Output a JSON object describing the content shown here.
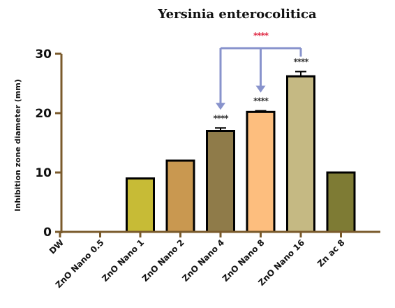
{
  "chart_data": {
    "type": "bar",
    "title": "Yersinia enterocolitica",
    "ylabel": "Inhibition zone diameter (mm)",
    "xlabel": "",
    "ylim": [
      0,
      30
    ],
    "yticks": [
      0,
      10,
      20,
      30
    ],
    "ytick_labels": [
      "0",
      "10",
      "20",
      "30"
    ],
    "grid": false,
    "categories": [
      "DW",
      "ZnO Nano 0.5",
      "ZnO Nano 1",
      "ZnO Nano 2",
      "ZnO Nano 4",
      "ZnO Nano 8",
      "ZnO Nano 16",
      "Zn ac 8"
    ],
    "values": [
      0,
      0,
      9,
      12,
      17,
      20.2,
      26.2,
      10
    ],
    "errors": [
      0,
      0,
      0,
      0,
      0.5,
      0.2,
      0.8,
      0
    ],
    "bar_colors": [
      "#ffffff",
      "#ffffff",
      "#c7bb36",
      "#c99850",
      "#8f7b49",
      "#fdbe7e",
      "#c5b983",
      "#7e7b34"
    ],
    "significance": [
      "",
      "",
      "",
      "",
      "****",
      "****",
      "****",
      ""
    ],
    "comparison": {
      "label": "****",
      "from_category": "ZnO Nano 16",
      "to_categories": [
        "ZnO Nano 4",
        "ZnO Nano 8"
      ],
      "color": "#8893cc",
      "label_color": "#e0304a"
    },
    "colors": {
      "axis": "#7a5a2b",
      "bar_edge": "#000000",
      "significance": "#333333"
    }
  }
}
